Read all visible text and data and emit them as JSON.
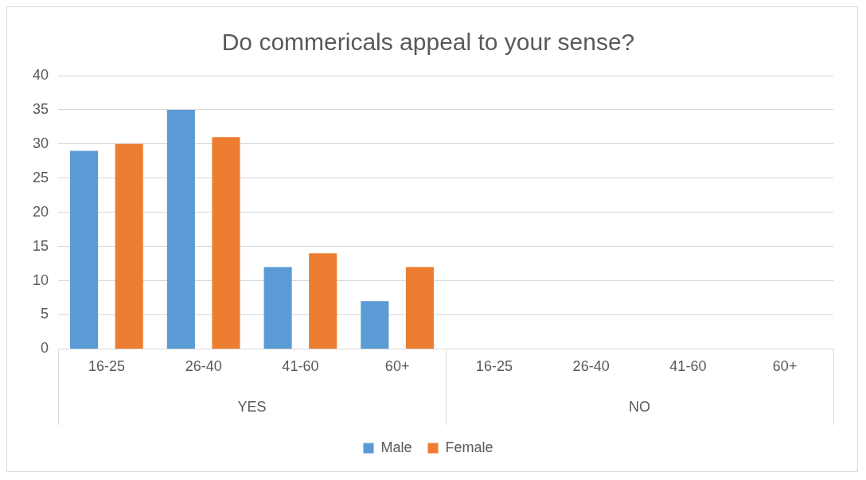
{
  "chart_data": {
    "type": "bar",
    "title": "Do commericals appeal to your sense?",
    "categories": [
      "16-25",
      "26-40",
      "41-60",
      "60+",
      "16-25",
      "26-40",
      "41-60",
      "60+"
    ],
    "series": [
      {
        "name": "Male",
        "color": "#5b9bd5",
        "values": [
          29,
          35,
          12,
          7,
          null,
          null,
          null,
          null
        ]
      },
      {
        "name": "Female",
        "color": "#ed7d31",
        "values": [
          30,
          31,
          14,
          12,
          null,
          null,
          null,
          null
        ]
      }
    ],
    "annotations": [
      "YES",
      "NO"
    ],
    "ylim": [
      0,
      40
    ],
    "yticks": [
      0,
      5,
      10,
      15,
      20,
      25,
      30,
      35,
      40
    ],
    "grid": "y",
    "legend": "bottom"
  }
}
